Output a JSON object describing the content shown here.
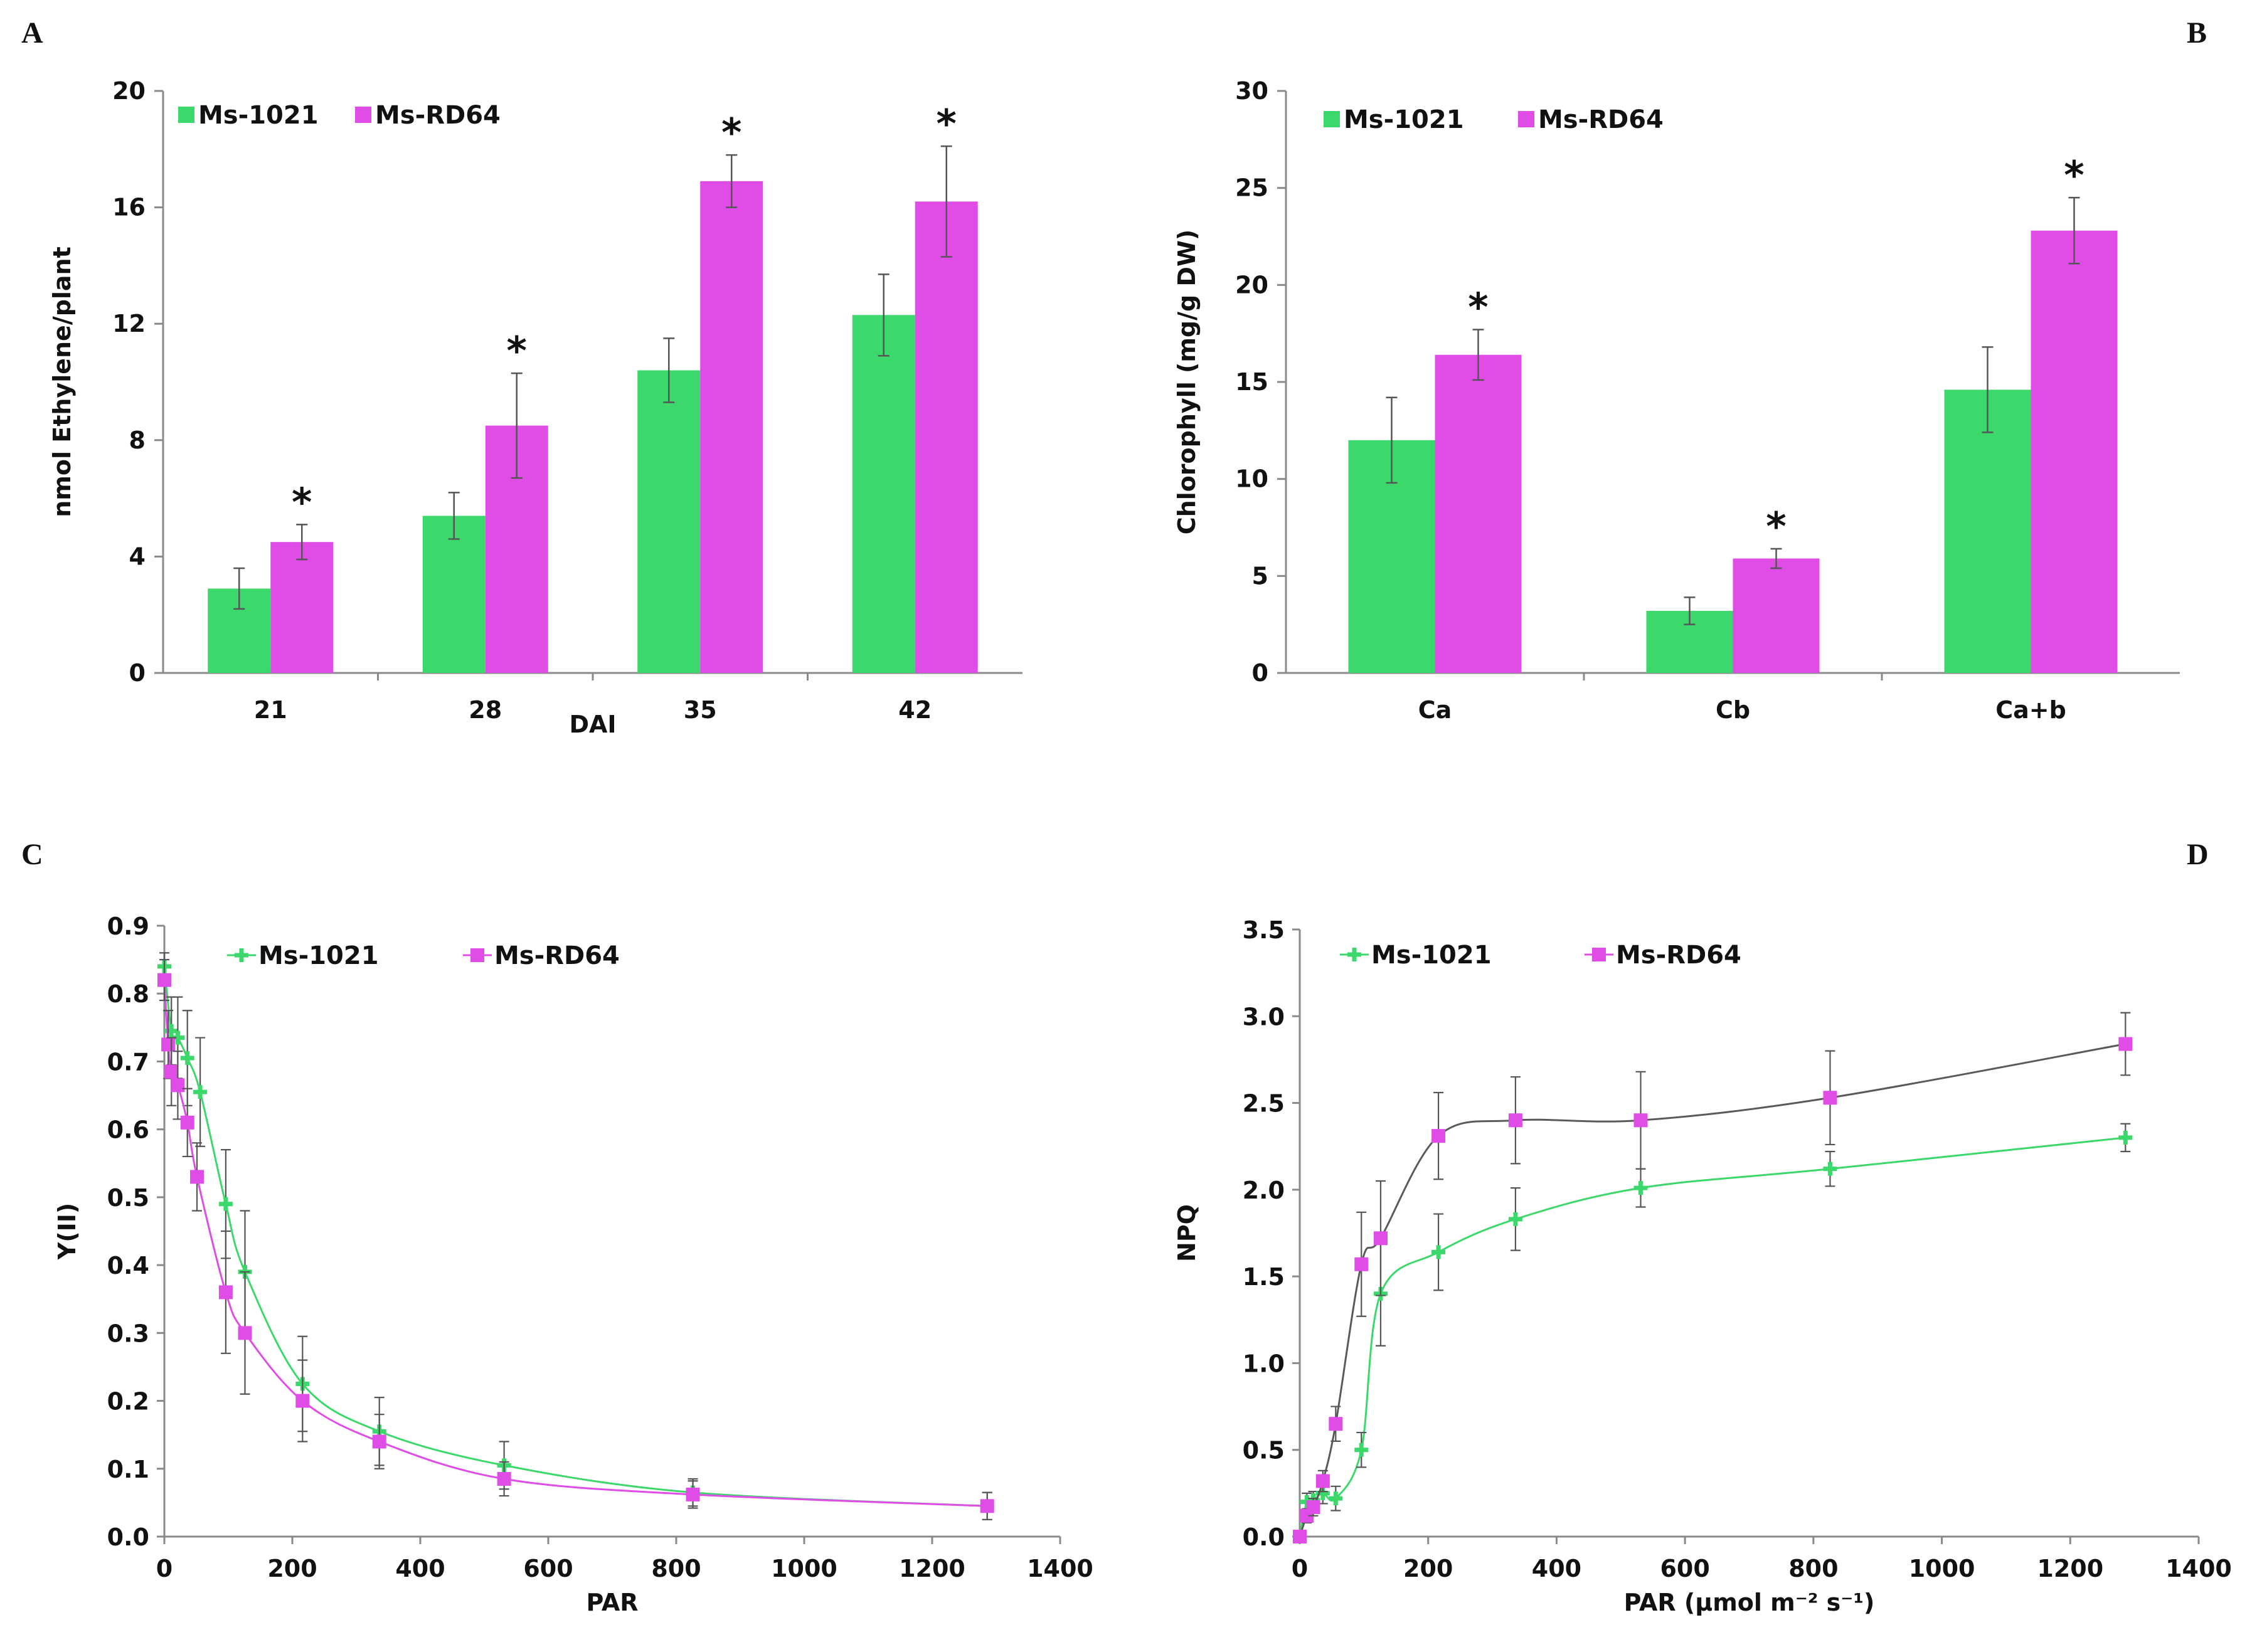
{
  "colors": {
    "green": "#3dd86b",
    "magenta": "#e04ce6",
    "darkline": "#5a5a5a",
    "errbar": "#555555"
  },
  "chart_data": [
    {
      "panel": "A",
      "type": "bar",
      "categories": [
        "21",
        "28",
        "35",
        "42"
      ],
      "xlabel": "DAI",
      "ylabel": "nmol Ethylene/plant",
      "ylim": [
        0,
        20
      ],
      "yticks": [
        "0",
        "4",
        "8",
        "12",
        "16",
        "20"
      ],
      "legend": [
        "Ms-1021",
        "Ms-RD64"
      ],
      "series": [
        {
          "name": "Ms-1021",
          "values": [
            2.9,
            5.4,
            10.4,
            12.3
          ],
          "errors": [
            0.7,
            0.8,
            1.1,
            1.4
          ]
        },
        {
          "name": "Ms-RD64",
          "values": [
            4.5,
            8.5,
            16.9,
            16.2
          ],
          "errors": [
            0.6,
            1.8,
            0.9,
            1.9
          ]
        }
      ],
      "significance": [
        "*",
        "*",
        "*",
        "*"
      ]
    },
    {
      "panel": "B",
      "type": "bar",
      "categories": [
        "Ca",
        "Cb",
        "Ca+b"
      ],
      "xlabel": "",
      "ylabel": "Chlorophyll (mg/g DW)",
      "ylim": [
        0,
        30
      ],
      "yticks": [
        "0",
        "5",
        "10",
        "15",
        "20",
        "25",
        "30"
      ],
      "legend": [
        "Ms-1021",
        "Ms-RD64"
      ],
      "series": [
        {
          "name": "Ms-1021",
          "values": [
            12.0,
            3.2,
            14.6
          ],
          "errors": [
            2.2,
            0.7,
            2.2
          ]
        },
        {
          "name": "Ms-RD64",
          "values": [
            16.4,
            5.9,
            22.8
          ],
          "errors": [
            1.3,
            0.5,
            1.7
          ]
        }
      ],
      "significance": [
        "*",
        "*",
        "*"
      ]
    },
    {
      "panel": "C",
      "type": "line",
      "xlabel": "PAR",
      "ylabel": "Y(II)",
      "xlim": [
        0,
        1400
      ],
      "ylim": [
        0,
        0.9
      ],
      "xticks": [
        "0",
        "200",
        "400",
        "600",
        "800",
        "1000",
        "1200",
        "1400"
      ],
      "yticks": [
        "0.0",
        "0.1",
        "0.2",
        "0.3",
        "0.4",
        "0.5",
        "0.6",
        "0.7",
        "0.8",
        "0.9"
      ],
      "legend": [
        "Ms-1021",
        "Ms-RD64"
      ],
      "series": [
        {
          "name": "Ms-1021",
          "x": [
            0,
            11,
            21,
            36,
            56,
            96,
            126,
            216,
            336,
            531,
            826,
            1286
          ],
          "y": [
            0.84,
            0.745,
            0.735,
            0.705,
            0.655,
            0.49,
            0.39,
            0.225,
            0.155,
            0.105,
            0.065,
            0.045
          ],
          "err": [
            0.02,
            0.05,
            0.06,
            0.07,
            0.08,
            0.08,
            0.09,
            0.07,
            0.05,
            0.035,
            0.02,
            0.02
          ]
        },
        {
          "name": "Ms-RD64",
          "x": [
            0,
            6,
            11,
            21,
            36,
            51,
            96,
            126,
            216,
            336,
            531,
            826,
            1286
          ],
          "y": [
            0.82,
            0.725,
            0.685,
            0.665,
            0.61,
            0.53,
            0.36,
            0.3,
            0.2,
            0.14,
            0.085,
            0.062,
            0.045
          ],
          "err": [
            0.03,
            0.05,
            0.05,
            0.05,
            0.05,
            0.05,
            0.09,
            0.09,
            0.06,
            0.04,
            0.025,
            0.02,
            0.02
          ]
        }
      ]
    },
    {
      "panel": "D",
      "type": "line",
      "xlabel": "PAR (µmol m⁻² s⁻¹)",
      "ylabel": "NPQ",
      "xlim": [
        0,
        1400
      ],
      "ylim": [
        0,
        3.5
      ],
      "xticks": [
        "0",
        "200",
        "400",
        "600",
        "800",
        "1000",
        "1200",
        "1400"
      ],
      "yticks": [
        "0.0",
        "0.5",
        "1.0",
        "1.5",
        "2.0",
        "2.5",
        "3.0",
        "3.5"
      ],
      "legend": [
        "Ms-1021",
        "Ms-RD64"
      ],
      "series": [
        {
          "name": "Ms-1021",
          "x": [
            0,
            11,
            21,
            36,
            56,
            96,
            126,
            216,
            336,
            531,
            826,
            1286
          ],
          "y": [
            0.0,
            0.2,
            0.21,
            0.25,
            0.22,
            0.5,
            1.4,
            1.64,
            1.83,
            2.01,
            2.12,
            2.3
          ],
          "err": [
            0.02,
            0.05,
            0.05,
            0.06,
            0.07,
            0.1,
            0.3,
            0.22,
            0.18,
            0.11,
            0.1,
            0.08
          ]
        },
        {
          "name": "Ms-RD64",
          "x": [
            0,
            11,
            21,
            36,
            56,
            96,
            126,
            216,
            336,
            531,
            826,
            1286
          ],
          "y": [
            0.0,
            0.12,
            0.17,
            0.32,
            0.65,
            1.57,
            1.72,
            2.31,
            2.4,
            2.4,
            2.53,
            2.84
          ],
          "err": [
            0.02,
            0.04,
            0.05,
            0.06,
            0.1,
            0.3,
            0.33,
            0.25,
            0.25,
            0.28,
            0.27,
            0.18
          ]
        }
      ]
    }
  ]
}
